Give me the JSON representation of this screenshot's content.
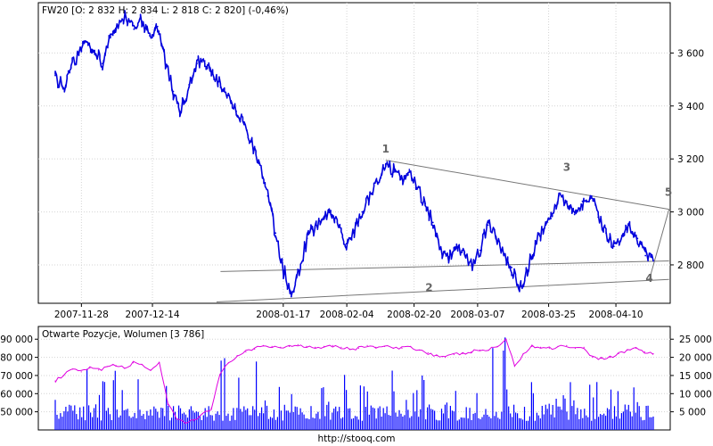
{
  "footer": "http://stooq.com",
  "chart_data": [
    {
      "type": "line",
      "title": "FW20 [O: 2 832  H: 2 834  L: 2 818  C: 2 820] (-0,46%)",
      "x_tick_labels": [
        "2007-11-28",
        "2007-12-14",
        "2008-01-17",
        "2008-02-04",
        "2008-02-20",
        "2008-03-07",
        "2008-03-25",
        "2008-04-10"
      ],
      "y_ticks": [
        2800,
        3000,
        3200,
        3400,
        3600
      ],
      "y_tick_labels": [
        "2 800",
        "3 000",
        "3 200",
        "3 400",
        "3 600"
      ],
      "ylim": [
        2655,
        3790
      ],
      "grid": true,
      "series_color": "#0000dd",
      "series": [
        {
          "values": [
            3515,
            3470,
            3545,
            3600,
            3640,
            3595,
            3560,
            3660,
            3700,
            3735,
            3690,
            3720,
            3665,
            3700,
            3560,
            3455,
            3380,
            3480,
            3560,
            3570,
            3525,
            3470,
            3440,
            3380,
            3330,
            3265,
            3180,
            3060,
            2920,
            2780,
            2680,
            2780,
            2900,
            2940,
            2975,
            3005,
            2945,
            2880,
            2930,
            3000,
            3075,
            3110,
            3180,
            3150,
            3130,
            3160,
            3090,
            3030,
            2960,
            2860,
            2830,
            2865,
            2845,
            2800,
            2855,
            2950,
            2905,
            2840,
            2790,
            2705,
            2780,
            2880,
            2935,
            2975,
            3060,
            3040,
            2990,
            3040,
            3060,
            2980,
            2920,
            2870,
            2910,
            2950,
            2900,
            2835,
            2815
          ]
        }
      ],
      "wave_labels": [
        "1",
        "2",
        "3",
        "4",
        "5"
      ],
      "trendlines": [
        {
          "name": "upper",
          "from": [
            42,
            3195
          ],
          "to": [
            78,
            3010
          ]
        },
        {
          "name": "lower-a",
          "from": [
            20.5,
            2660
          ],
          "to": [
            78,
            2745
          ]
        },
        {
          "name": "lower-b",
          "from": [
            21,
            2775
          ],
          "to": [
            78,
            2815
          ]
        },
        {
          "name": "wave-4-5",
          "from": [
            75.5,
            2745
          ],
          "to": [
            78,
            3010
          ]
        }
      ]
    },
    {
      "type": "bar",
      "title": "Otwarte Pozycje, Wolumen [3 786]",
      "left_axis": {
        "ticks": [
          50000,
          60000,
          70000,
          80000,
          90000
        ],
        "tick_labels": [
          "50 000",
          "60 000",
          "70 000",
          "80 000",
          "90 000"
        ],
        "range": [
          40000,
          97000
        ]
      },
      "right_axis": {
        "ticks": [
          5000,
          10000,
          15000,
          20000,
          25000
        ],
        "tick_labels": [
          "5 000",
          "10 000",
          "15 000",
          "20 000",
          "25 000"
        ],
        "range": [
          0,
          28500
        ]
      },
      "grid": true,
      "volume_color": "#0000ff",
      "open_interest_color": "#e000e0",
      "open_interest": [
        67000,
        70000,
        73500,
        72000,
        74000,
        73000,
        75000,
        75500,
        74000,
        77000,
        76000,
        73000,
        77000,
        54000,
        46000,
        44000,
        45000,
        49000,
        52000,
        70000,
        77000,
        81000,
        83000,
        84500,
        86500,
        86000,
        85500,
        86000,
        87000,
        86000,
        85500,
        86000,
        86500,
        85500,
        84500,
        85000,
        86500,
        85500,
        86000,
        85000,
        85000,
        86000,
        84000,
        82500,
        81000,
        80000,
        81500,
        82000,
        83000,
        84000,
        84000,
        86000,
        90000,
        75000,
        82000,
        86000,
        85500,
        85000,
        86000,
        86500,
        85000,
        85500,
        80000,
        79500,
        80000,
        82000,
        84000,
        85000,
        83000,
        82000
      ],
      "volume_peaks": [
        15000,
        12000,
        10000,
        18000,
        9000,
        14000,
        17000,
        21000,
        11000,
        19000,
        8000,
        13000,
        16000,
        12000,
        6000,
        7000,
        5000,
        8000,
        9000,
        20000,
        23000,
        15000,
        17000,
        24000,
        14000,
        12000,
        18000,
        11000,
        16000,
        22000,
        13000,
        15000,
        10000,
        19000,
        12000,
        14000,
        11000,
        13000,
        17000,
        12000,
        9000,
        11000,
        15000,
        10000,
        13000,
        12000,
        19000,
        17000,
        14000,
        20000,
        26000,
        28000,
        16000,
        12000,
        14000,
        18000,
        11000,
        13000,
        10000,
        15000,
        12000,
        17000,
        14000,
        11000,
        13000,
        16000,
        12000,
        15000,
        13000,
        16000
      ]
    }
  ]
}
